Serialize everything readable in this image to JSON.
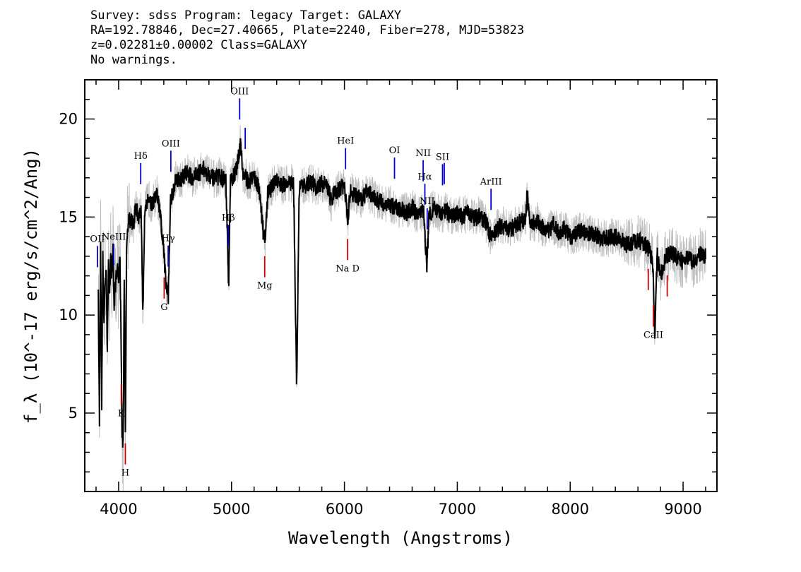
{
  "header": {
    "line1": "Survey: sdss Program: legacy Target: GALAXY",
    "line2": "RA=192.78846, Dec=27.40665, Plate=2240, Fiber=278, MJD=53823",
    "line3": "z=0.02281±0.00002 Class=GALAXY",
    "line4": "No warnings."
  },
  "chart_data": {
    "type": "line",
    "xlabel": "Wavelength (Angstroms)",
    "ylabel": "f_λ (10^-17 erg/s/cm^2/Ang)",
    "xlim": [
      3700,
      9300
    ],
    "ylim": [
      1,
      22
    ],
    "x_ticks": [
      4000,
      5000,
      6000,
      7000,
      8000,
      9000
    ],
    "y_ticks": [
      5,
      10,
      15,
      20
    ],
    "grid": false,
    "colors": {
      "smoothed": "#000000",
      "raw": "#c0c0c0",
      "emission": "#0000cc",
      "absorption": "#cc0000"
    },
    "series": [
      {
        "x": [
          3820,
          3830,
          3840,
          3850,
          3860,
          3870,
          3880,
          3890,
          3900,
          3910,
          3920,
          3930,
          3940,
          3950,
          3960,
          3970,
          3980,
          3990,
          4000,
          4010,
          4020,
          4030,
          4040,
          4050,
          4060,
          4070,
          4080,
          4090,
          4100,
          4110,
          4130,
          4150,
          4180,
          4200,
          4215,
          4230,
          4260,
          4300,
          4340,
          4370,
          4400,
          4420,
          4440,
          4460,
          4480,
          4510,
          4550,
          4600,
          4650,
          4700,
          4750,
          4800,
          4850,
          4900,
          4950,
          4975,
          4990,
          5010,
          5050,
          5080,
          5100,
          5150,
          5200,
          5250,
          5280,
          5300,
          5320,
          5400,
          5450,
          5500,
          5550,
          5577,
          5600,
          5650,
          5700,
          5750,
          5800,
          5850,
          5890,
          5900,
          5950,
          6000,
          6030,
          6050,
          6100,
          6150,
          6200,
          6300,
          6400,
          6500,
          6563,
          6600,
          6650,
          6700,
          6730,
          6750,
          6800,
          6850,
          6900,
          6950,
          7000,
          7050,
          7100,
          7150,
          7200,
          7250,
          7300,
          7350,
          7400,
          7450,
          7500,
          7550,
          7600,
          7620,
          7650,
          7700,
          7750,
          7800,
          7850,
          7900,
          7950,
          8000,
          8100,
          8200,
          8300,
          8400,
          8500,
          8600,
          8650,
          8700,
          8730,
          8750,
          8770,
          8800,
          8850,
          8900,
          8950,
          9000,
          9050,
          9100,
          9150,
          9200
        ],
        "y": [
          11.0,
          4.6,
          14.0,
          5.3,
          13.2,
          9.5,
          11.8,
          12.5,
          8.0,
          12.8,
          11.2,
          13.0,
          12.0,
          13.5,
          10.2,
          11.5,
          12.0,
          12.8,
          11.5,
          13.4,
          9.6,
          4.0,
          3.2,
          12.0,
          4.1,
          13.0,
          14.5,
          15.2,
          14.8,
          15.0,
          14.5,
          15.5,
          15.0,
          15.3,
          9.8,
          15.2,
          16.0,
          15.6,
          16.2,
          15.0,
          13.2,
          11.5,
          11.0,
          15.8,
          16.3,
          17.0,
          16.9,
          17.3,
          17.0,
          17.2,
          17.4,
          17.2,
          16.9,
          17.1,
          16.8,
          11.4,
          16.8,
          17.0,
          17.5,
          18.9,
          17.2,
          16.8,
          17.1,
          16.3,
          14.3,
          13.9,
          16.2,
          16.9,
          16.6,
          16.8,
          16.7,
          6.3,
          16.4,
          16.6,
          16.8,
          16.5,
          16.7,
          16.6,
          15.6,
          16.2,
          16.4,
          16.6,
          14.8,
          16.3,
          16.1,
          15.9,
          16.3,
          15.8,
          15.6,
          15.4,
          15.2,
          15.5,
          15.0,
          15.4,
          12.5,
          15.2,
          15.4,
          15.1,
          15.3,
          15.0,
          15.2,
          15.0,
          15.3,
          14.9,
          15.1,
          14.8,
          13.9,
          14.4,
          14.6,
          14.3,
          14.5,
          14.7,
          14.8,
          16.2,
          14.6,
          14.8,
          14.5,
          14.3,
          14.6,
          14.2,
          14.4,
          14.0,
          14.3,
          14.1,
          13.9,
          14.0,
          13.6,
          13.8,
          13.7,
          13.3,
          12.8,
          9.0,
          13.1,
          12.0,
          13.0,
          13.2,
          12.9,
          12.7,
          13.0,
          12.6,
          13.1,
          13.0
        ]
      }
    ],
    "emission_lines": [
      {
        "label": "OII",
        "x": 3727
      },
      {
        "label": "NeIII",
        "x": 3869
      },
      {
        "label": "Hδ",
        "x": 4102
      },
      {
        "label": "Hγ",
        "x": 4340
      },
      {
        "label": "OIII",
        "x": 4363
      },
      {
        "label": "Hβ",
        "x": 4861
      },
      {
        "label": "OIII",
        "x": 4959
      },
      {
        "label": "",
        "x": 5007
      },
      {
        "label": "HeI",
        "x": 5876
      },
      {
        "label": "OI",
        "x": 6300
      },
      {
        "label": "NII",
        "x": 6548
      },
      {
        "label": "Hα",
        "x": 6563
      },
      {
        "label": "NII",
        "x": 6583
      },
      {
        "label": "SII",
        "x": 6716
      },
      {
        "label": "",
        "x": 6731
      },
      {
        "label": "ArIII",
        "x": 7136
      }
    ],
    "absorption_lines": [
      {
        "label": "K",
        "x": 3934
      },
      {
        "label": "H",
        "x": 3969
      },
      {
        "label": "G",
        "x": 4305
      },
      {
        "label": "Mg",
        "x": 5176
      },
      {
        "label": "Na D",
        "x": 5894
      },
      {
        "label": "",
        "x": 8498
      },
      {
        "label": "CaII",
        "x": 8542
      },
      {
        "label": "",
        "x": 8662
      }
    ]
  }
}
